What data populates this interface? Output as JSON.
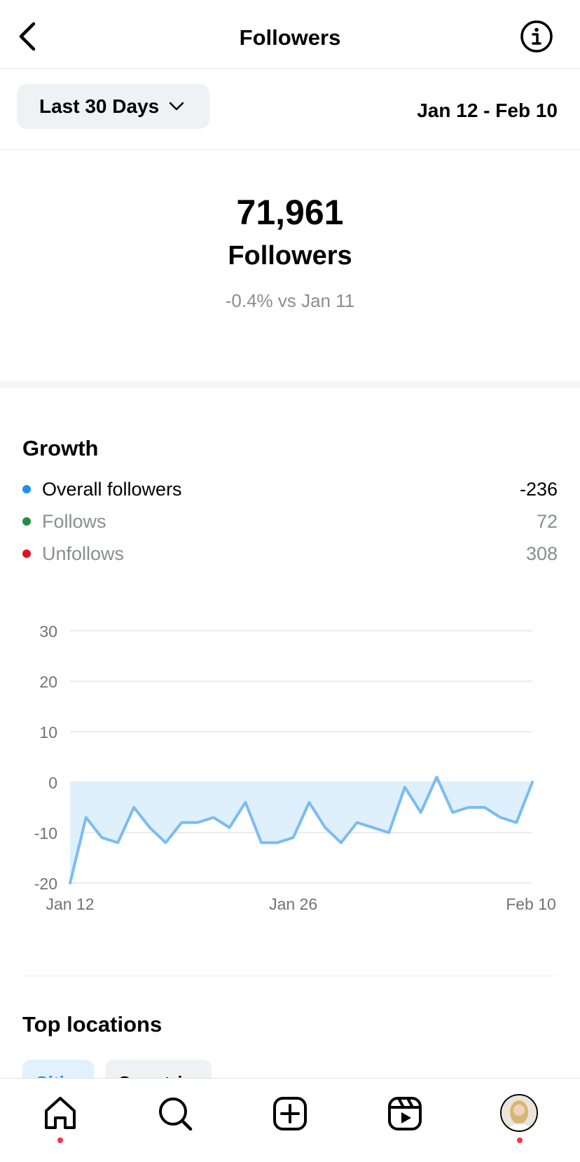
{
  "header": {
    "title": "Followers",
    "back_icon": "chevron-left-icon",
    "info_icon": "info-icon"
  },
  "filter": {
    "range_label": "Last 30 Days",
    "range_icon": "chevron-down-icon",
    "date_range": "Jan 12 - Feb 10"
  },
  "summary": {
    "count": "71,961",
    "label": "Followers",
    "comparison": "-0.4% vs Jan 11"
  },
  "growth": {
    "title": "Growth",
    "legend": [
      {
        "name": "Overall followers",
        "value": "-236",
        "color": "#1a93f0",
        "muted": false
      },
      {
        "name": "Follows",
        "value": "72",
        "color": "#1e8e3e",
        "muted": true
      },
      {
        "name": "Unfollows",
        "value": "308",
        "color": "#e0141e",
        "muted": true
      }
    ]
  },
  "chart_data": {
    "type": "area",
    "x": [
      "Jan 12",
      "Jan 13",
      "Jan 14",
      "Jan 15",
      "Jan 16",
      "Jan 17",
      "Jan 18",
      "Jan 19",
      "Jan 20",
      "Jan 21",
      "Jan 22",
      "Jan 23",
      "Jan 24",
      "Jan 25",
      "Jan 26",
      "Jan 27",
      "Jan 28",
      "Jan 29",
      "Jan 30",
      "Jan 31",
      "Feb 1",
      "Feb 2",
      "Feb 3",
      "Feb 4",
      "Feb 5",
      "Feb 6",
      "Feb 7",
      "Feb 8",
      "Feb 9",
      "Feb 10"
    ],
    "series": [
      {
        "values": [
          -20,
          -7,
          -11,
          -12,
          -5,
          -9,
          -12,
          -8,
          -8,
          -7,
          -9,
          -4,
          -12,
          -12,
          -11,
          -4,
          -9,
          -12,
          -8,
          -9,
          -10,
          -1,
          -6,
          1,
          -6,
          -5,
          -5,
          -7,
          -8,
          0
        ]
      }
    ],
    "x_tick_labels": [
      "Jan 12",
      "Jan 26",
      "Feb 10"
    ],
    "y_ticks": [
      30,
      20,
      10,
      0,
      -10,
      -20
    ],
    "ylim": [
      -20,
      30
    ],
    "grid": true,
    "line_color": "#7bbcf2",
    "fill_color": "#dff0fd"
  },
  "locations": {
    "title": "Top locations",
    "tabs": [
      "Cities",
      "Countries"
    ]
  },
  "nav": {
    "items": [
      "home-icon",
      "search-icon",
      "create-icon",
      "reels-icon",
      "profile-avatar"
    ],
    "notification_color": "#ff3040"
  }
}
